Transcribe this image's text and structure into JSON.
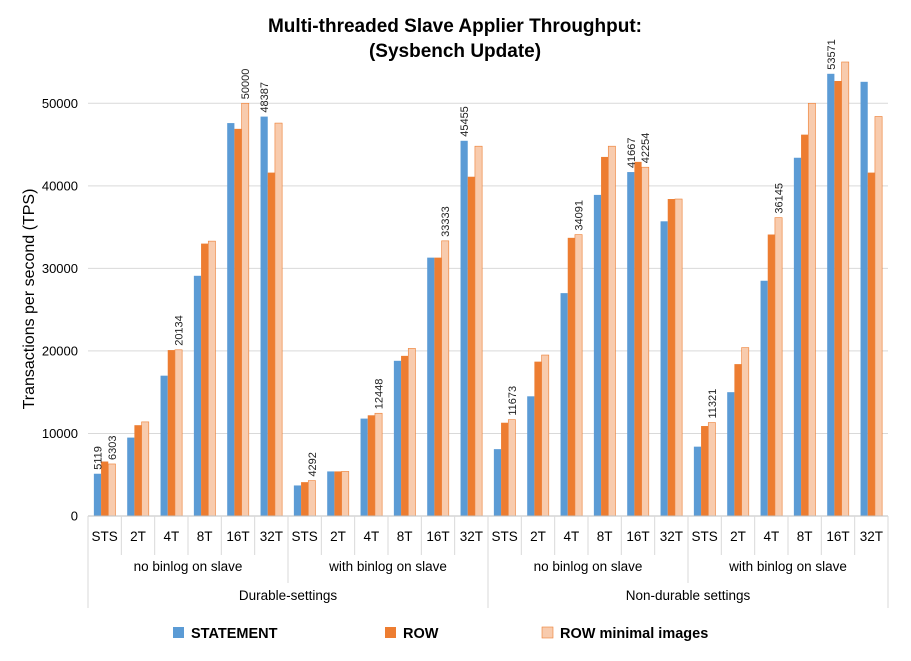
{
  "chart_data": {
    "type": "bar",
    "title_lines": [
      "Multi-threaded Slave Applier Throughput:",
      "(Sysbench Update)"
    ],
    "ylabel": "Transactions per second (TPS)",
    "ylim": [
      0,
      55000
    ],
    "yticks": [
      0,
      10000,
      20000,
      30000,
      40000,
      50000
    ],
    "grid": "horizontal",
    "legend_position": "bottom",
    "categories": [
      "STS",
      "2T",
      "4T",
      "8T",
      "16T",
      "32T",
      "STS",
      "2T",
      "4T",
      "8T",
      "16T",
      "32T",
      "STS",
      "2T",
      "4T",
      "8T",
      "16T",
      "32T",
      "STS",
      "2T",
      "4T",
      "8T",
      "16T",
      "32T"
    ],
    "groups_level1": [
      "no binlog on slave",
      "with binlog on slave",
      "no binlog on slave",
      "with binlog on slave"
    ],
    "groups_level2": [
      "Durable-settings",
      "Non-durable settings"
    ],
    "series": [
      {
        "name": "STATEMENT",
        "color": "#5b9bd5",
        "values": [
          5119,
          9500,
          17000,
          29100,
          47600,
          48387,
          3700,
          5400,
          11800,
          18800,
          31300,
          45455,
          8100,
          14500,
          27000,
          38900,
          41667,
          35700,
          8400,
          15000,
          28500,
          43400,
          53571,
          52600
        ]
      },
      {
        "name": "ROW",
        "color": "#ed7d31",
        "values": [
          6600,
          11000,
          20100,
          33000,
          46900,
          41600,
          4100,
          5400,
          12200,
          19400,
          31300,
          41100,
          11300,
          18700,
          33700,
          43500,
          42900,
          38400,
          10900,
          18400,
          34100,
          46200,
          52700,
          41600
        ]
      },
      {
        "name": "ROW minimal images",
        "color": "#f8cbad",
        "values": [
          6303,
          11400,
          20134,
          33300,
          50000,
          47600,
          4292,
          5400,
          12448,
          20300,
          33333,
          44800,
          11673,
          19500,
          34091,
          44800,
          42254,
          38400,
          11321,
          20400,
          36145,
          50000,
          55000,
          48400
        ]
      }
    ],
    "data_labels": [
      {
        "series": 0,
        "index": 0,
        "text": "5119"
      },
      {
        "series": 2,
        "index": 0,
        "text": "6303"
      },
      {
        "series": 2,
        "index": 2,
        "text": "20134"
      },
      {
        "series": 2,
        "index": 4,
        "text": "50000"
      },
      {
        "series": 0,
        "index": 5,
        "text": "48387"
      },
      {
        "series": 2,
        "index": 6,
        "text": "4292"
      },
      {
        "series": 2,
        "index": 8,
        "text": "12448"
      },
      {
        "series": 2,
        "index": 10,
        "text": "33333"
      },
      {
        "series": 0,
        "index": 11,
        "text": "45455"
      },
      {
        "series": 2,
        "index": 12,
        "text": "11673"
      },
      {
        "series": 2,
        "index": 14,
        "text": "34091"
      },
      {
        "series": 0,
        "index": 16,
        "text": "41667"
      },
      {
        "series": 2,
        "index": 16,
        "text": "42254"
      },
      {
        "series": 2,
        "index": 18,
        "text": "11321"
      },
      {
        "series": 2,
        "index": 20,
        "text": "36145"
      },
      {
        "series": 0,
        "index": 22,
        "text": "53571"
      }
    ]
  }
}
